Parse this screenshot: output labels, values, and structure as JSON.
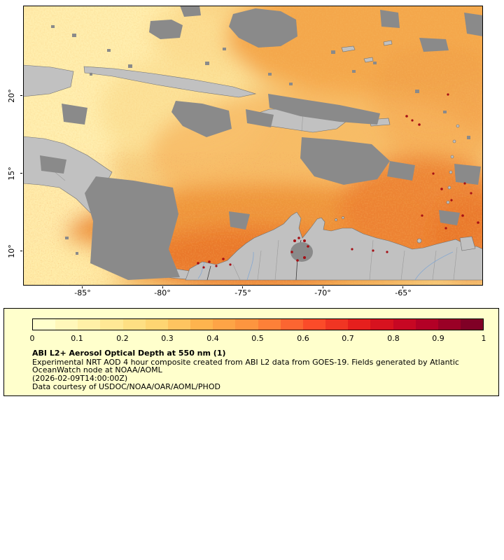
{
  "map": {
    "lat_tick_labels": [
      "20°",
      "15°",
      "10°"
    ],
    "lon_tick_labels": [
      "-85°",
      "-80°",
      "-75°",
      "-70°",
      "-65°"
    ],
    "colors": {
      "land": "#c1c1c1",
      "cloud": "#8a8a8a",
      "lake": "#a9b2ba",
      "river": "#7aa3d4",
      "outline": "#6f6f6f",
      "speck": "#a50f15",
      "frame": "#000000"
    }
  },
  "legend": {
    "background_color": "#ffffcc",
    "border_color": "#000000",
    "colorbar_colors": [
      "#ffffcc",
      "#fff7ba",
      "#fff0a7",
      "#ffe895",
      "#fedf83",
      "#fed572",
      "#fec460",
      "#feb44e",
      "#fea446",
      "#fd953f",
      "#fd8038",
      "#fc6531",
      "#fb4b29",
      "#f03523",
      "#e61f1d",
      "#d7121f",
      "#c70723",
      "#b30026",
      "#9a0026",
      "#800026"
    ],
    "tick_labels": [
      "0",
      "0.1",
      "0.2",
      "0.3",
      "0.4",
      "0.5",
      "0.6",
      "0.7",
      "0.8",
      "0.9",
      "1"
    ],
    "title": "ABI L2+ Aerosol Optical Depth at 550 nm (1)",
    "description_lines": [
      "Experimental NRT AOD 4 hour composite created from ABI L2 data from GOES-19. Fields generated by Atlantic",
      "OceanWatch node at NOAA/AOML"
    ],
    "timestamp": "(2026-02-09T14:00:00Z)",
    "courtesy": "Data courtesy of USDOC/NOAA/OAR/AOML/PHOD"
  },
  "chart_data": {
    "type": "heatmap",
    "title": "ABI L2+ Aerosol Optical Depth at 550 nm (1)",
    "colorbar_range": [
      0,
      1
    ],
    "colorbar_ticks": [
      0,
      0.1,
      0.2,
      0.3,
      0.4,
      0.5,
      0.6,
      0.7,
      0.8,
      0.9,
      1
    ],
    "x_axis_ticks_lon_deg": [
      -85,
      -80,
      -75,
      -70,
      -65
    ],
    "y_axis_ticks_lat_deg": [
      20,
      15,
      10
    ]
  }
}
